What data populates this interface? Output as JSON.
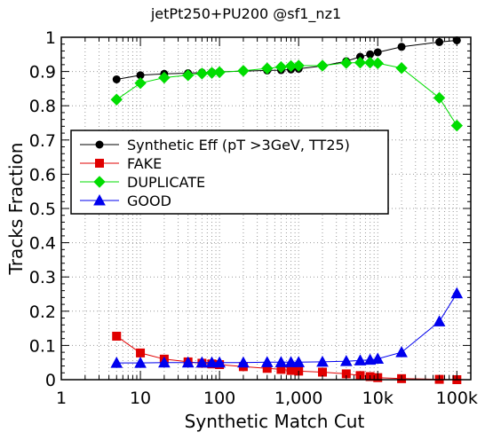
{
  "chart_data": {
    "type": "line",
    "title": "jetPt250+PU200 @sf1_nz1",
    "xlabel": "Synthetic Match Cut",
    "ylabel": "Tracks Fraction",
    "x_scale": "log",
    "xlim": [
      1,
      150000
    ],
    "ylim": [
      0,
      1
    ],
    "x_tick_labels": [
      "1",
      "10",
      "100",
      "1,000",
      "10k",
      "100k"
    ],
    "x_tick_values": [
      1,
      10,
      100,
      1000,
      10000,
      100000
    ],
    "y_tick_labels": [
      "0",
      "0.1",
      "0.2",
      "0.3",
      "0.4",
      "0.5",
      "0.6",
      "0.7",
      "0.8",
      "0.9",
      "1"
    ],
    "y_tick_values": [
      0,
      0.1,
      0.2,
      0.3,
      0.4,
      0.5,
      0.6,
      0.7,
      0.8,
      0.9,
      1
    ],
    "grid": true,
    "legend_placement": "center-left",
    "series": [
      {
        "name": "Synthetic Eff (pT >3GeV, TT25)",
        "color": "#000000",
        "marker": "circle",
        "x": [
          5,
          10,
          20,
          40,
          60,
          80,
          100,
          200,
          400,
          600,
          800,
          1000,
          2000,
          4000,
          6000,
          8000,
          10000,
          20000,
          60000,
          100000
        ],
        "y": [
          0.877,
          0.889,
          0.893,
          0.895,
          0.897,
          0.898,
          0.899,
          0.901,
          0.903,
          0.904,
          0.906,
          0.908,
          0.916,
          0.93,
          0.943,
          0.95,
          0.956,
          0.972,
          0.986,
          0.991
        ]
      },
      {
        "name": "FAKE",
        "color": "#e00000",
        "marker": "square",
        "x": [
          5,
          10,
          20,
          40,
          60,
          80,
          100,
          200,
          400,
          600,
          800,
          1000,
          2000,
          4000,
          6000,
          8000,
          10000,
          20000,
          60000,
          100000
        ],
        "y": [
          0.127,
          0.078,
          0.06,
          0.052,
          0.048,
          0.046,
          0.044,
          0.038,
          0.033,
          0.03,
          0.027,
          0.025,
          0.022,
          0.017,
          0.012,
          0.009,
          0.006,
          0.003,
          0.001,
          0.0
        ]
      },
      {
        "name": "DUPLICATE",
        "color": "#00dd00",
        "marker": "diamond",
        "x": [
          5,
          10,
          20,
          40,
          60,
          80,
          100,
          200,
          400,
          600,
          800,
          1000,
          2000,
          4000,
          6000,
          8000,
          10000,
          20000,
          60000,
          100000
        ],
        "y": [
          0.818,
          0.866,
          0.882,
          0.889,
          0.894,
          0.896,
          0.898,
          0.902,
          0.909,
          0.913,
          0.916,
          0.917,
          0.917,
          0.925,
          0.926,
          0.926,
          0.924,
          0.91,
          0.823,
          0.742
        ]
      },
      {
        "name": "GOOD",
        "color": "#0000ee",
        "marker": "triangle",
        "x": [
          5,
          10,
          20,
          40,
          60,
          80,
          100,
          200,
          400,
          600,
          800,
          1000,
          2000,
          4000,
          6000,
          8000,
          10000,
          20000,
          60000,
          100000
        ],
        "y": [
          0.049,
          0.049,
          0.05,
          0.05,
          0.05,
          0.05,
          0.05,
          0.05,
          0.051,
          0.051,
          0.051,
          0.051,
          0.052,
          0.054,
          0.056,
          0.058,
          0.061,
          0.08,
          0.17,
          0.252
        ]
      }
    ]
  }
}
